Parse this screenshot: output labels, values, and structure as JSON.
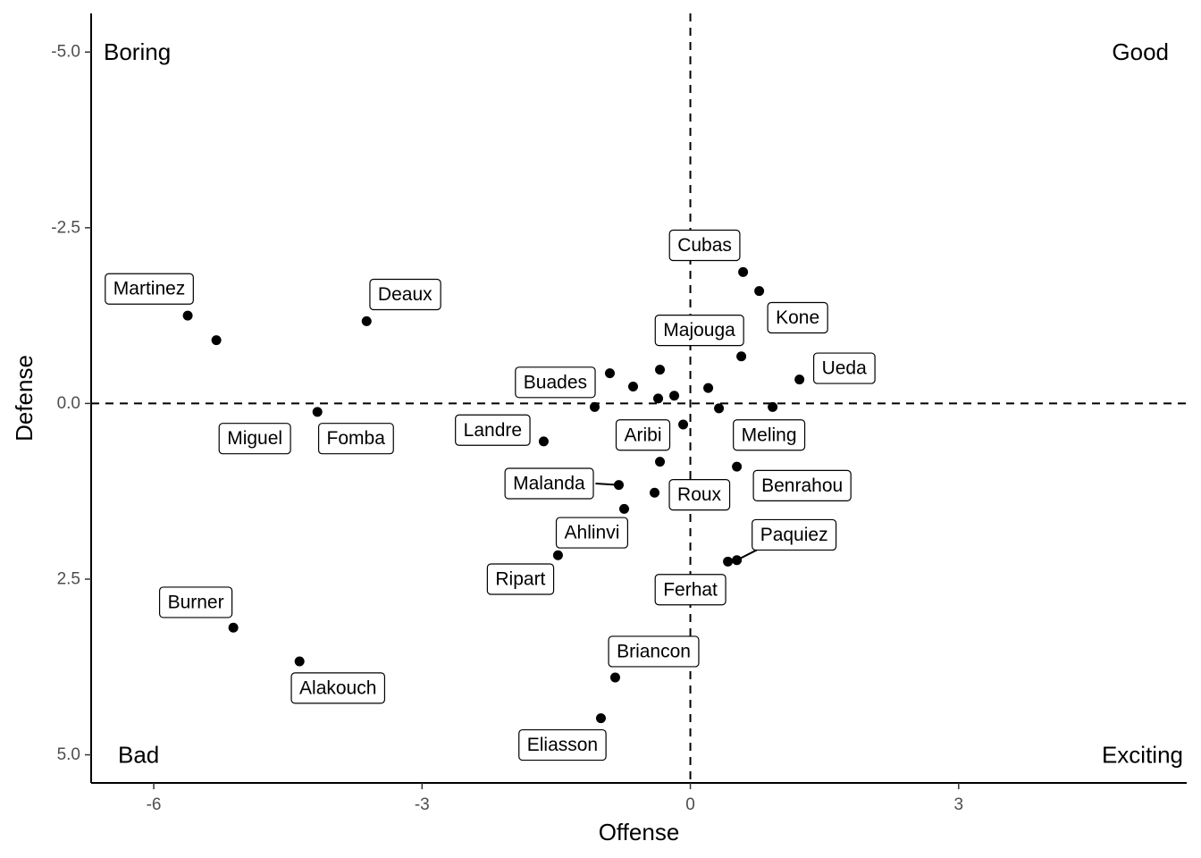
{
  "chart_data": {
    "type": "scatter",
    "title": "",
    "xlabel": "Offense",
    "ylabel": "Defense",
    "xlim": [
      -6.7,
      5.55
    ],
    "ylim": [
      -5.55,
      5.4
    ],
    "y_reversed": true,
    "x_ticks": [
      -6,
      -3,
      0,
      3
    ],
    "x_tick_labels": [
      "-6",
      "-3",
      "0",
      "3"
    ],
    "y_ticks": [
      -5.0,
      -2.5,
      0.0,
      2.5,
      5.0
    ],
    "y_tick_labels": [
      "-5.0",
      "-2.5",
      "0.0",
      "2.5",
      "5.0"
    ],
    "reference_lines": {
      "x": 0,
      "y": 0,
      "style": "dashed"
    },
    "grid": false,
    "quadrant_labels": [
      {
        "text": "Boring",
        "position": "top-left"
      },
      {
        "text": "Good",
        "position": "top-right"
      },
      {
        "text": "Bad",
        "position": "bottom-left"
      },
      {
        "text": "Exciting",
        "position": "bottom-right"
      }
    ],
    "point_color": "#000000",
    "points": [
      {
        "label": "Martinez",
        "x": -5.62,
        "y": -1.25
      },
      {
        "label": "",
        "x": -5.3,
        "y": -0.9
      },
      {
        "label": "Miguel",
        "x": null,
        "y": null
      },
      {
        "label": "Deaux",
        "x": -3.62,
        "y": -1.17
      },
      {
        "label": "Fomba",
        "x": -4.17,
        "y": 0.12
      },
      {
        "label": "Cubas",
        "x": 0.59,
        "y": -1.87
      },
      {
        "label": "Kone",
        "x": 0.77,
        "y": -1.6
      },
      {
        "label": "Majouga",
        "x": 0.57,
        "y": -0.67
      },
      {
        "label": "Ueda",
        "x": 1.22,
        "y": -0.34
      },
      {
        "label": "Buades",
        "x": -0.9,
        "y": -0.43
      },
      {
        "label": "",
        "x": -0.64,
        "y": -0.24
      },
      {
        "label": "",
        "x": -0.34,
        "y": -0.48
      },
      {
        "label": "",
        "x": -0.36,
        "y": -0.07
      },
      {
        "label": "",
        "x": -0.18,
        "y": -0.11
      },
      {
        "label": "",
        "x": 0.2,
        "y": -0.22
      },
      {
        "label": "",
        "x": -1.07,
        "y": 0.05
      },
      {
        "label": "",
        "x": 0.32,
        "y": 0.07
      },
      {
        "label": "Meling",
        "x": 0.92,
        "y": 0.05
      },
      {
        "label": "Aribi",
        "x": -0.08,
        "y": 0.3
      },
      {
        "label": "Landre",
        "x": -1.64,
        "y": 0.54
      },
      {
        "label": "",
        "x": -0.34,
        "y": 0.83
      },
      {
        "label": "Benrahou",
        "x": 0.52,
        "y": 0.9
      },
      {
        "label": "Malanda",
        "x": -0.8,
        "y": 1.16
      },
      {
        "label": "Roux",
        "x": -0.4,
        "y": 1.27
      },
      {
        "label": "",
        "x": -0.74,
        "y": 1.5
      },
      {
        "label": "Ahlinvi",
        "x": -1.48,
        "y": 2.16
      },
      {
        "label": "Ripart",
        "x": null,
        "y": null
      },
      {
        "label": "Paquiez",
        "x": 0.52,
        "y": 2.23
      },
      {
        "label": "Ferhat",
        "x": 0.42,
        "y": 2.25
      },
      {
        "label": "Burner",
        "x": -5.11,
        "y": 3.19
      },
      {
        "label": "Alakouch",
        "x": -4.37,
        "y": 3.67
      },
      {
        "label": "Briancon",
        "x": -0.84,
        "y": 3.9
      },
      {
        "label": "Eliasson",
        "x": -1.0,
        "y": 4.48
      }
    ],
    "labels": [
      {
        "text": "Martinez",
        "x": -6.05,
        "y": -1.63
      },
      {
        "text": "Miguel",
        "x": -4.87,
        "y": 0.5
      },
      {
        "text": "Deaux",
        "x": -3.19,
        "y": -1.55
      },
      {
        "text": "Fomba",
        "x": -3.74,
        "y": 0.5
      },
      {
        "text": "Cubas",
        "x": 0.16,
        "y": -2.25
      },
      {
        "text": "Kone",
        "x": 1.2,
        "y": -1.22
      },
      {
        "text": "Majouga",
        "x": 0.1,
        "y": -1.04
      },
      {
        "text": "Ueda",
        "x": 1.72,
        "y": -0.5
      },
      {
        "text": "Buades",
        "x": -1.51,
        "y": -0.3
      },
      {
        "text": "Meling",
        "x": 0.88,
        "y": 0.45
      },
      {
        "text": "Aribi",
        "x": -0.53,
        "y": 0.45
      },
      {
        "text": "Landre",
        "x": -2.21,
        "y": 0.38
      },
      {
        "text": "Benrahou",
        "x": 1.25,
        "y": 1.17
      },
      {
        "text": "Malanda",
        "x": -1.58,
        "y": 1.14
      },
      {
        "text": "Roux",
        "x": 0.1,
        "y": 1.3
      },
      {
        "text": "Ahlinvi",
        "x": -1.1,
        "y": 1.84
      },
      {
        "text": "Ripart",
        "x": -1.9,
        "y": 2.5
      },
      {
        "text": "Paquiez",
        "x": 1.16,
        "y": 1.87
      },
      {
        "text": "Ferhat",
        "x": 0.0,
        "y": 2.65
      },
      {
        "text": "Burner",
        "x": -5.53,
        "y": 2.83
      },
      {
        "text": "Alakouch",
        "x": -3.94,
        "y": 4.05
      },
      {
        "text": "Briancon",
        "x": -0.41,
        "y": 3.53
      },
      {
        "text": "Eliasson",
        "x": -1.43,
        "y": 4.86
      }
    ]
  }
}
